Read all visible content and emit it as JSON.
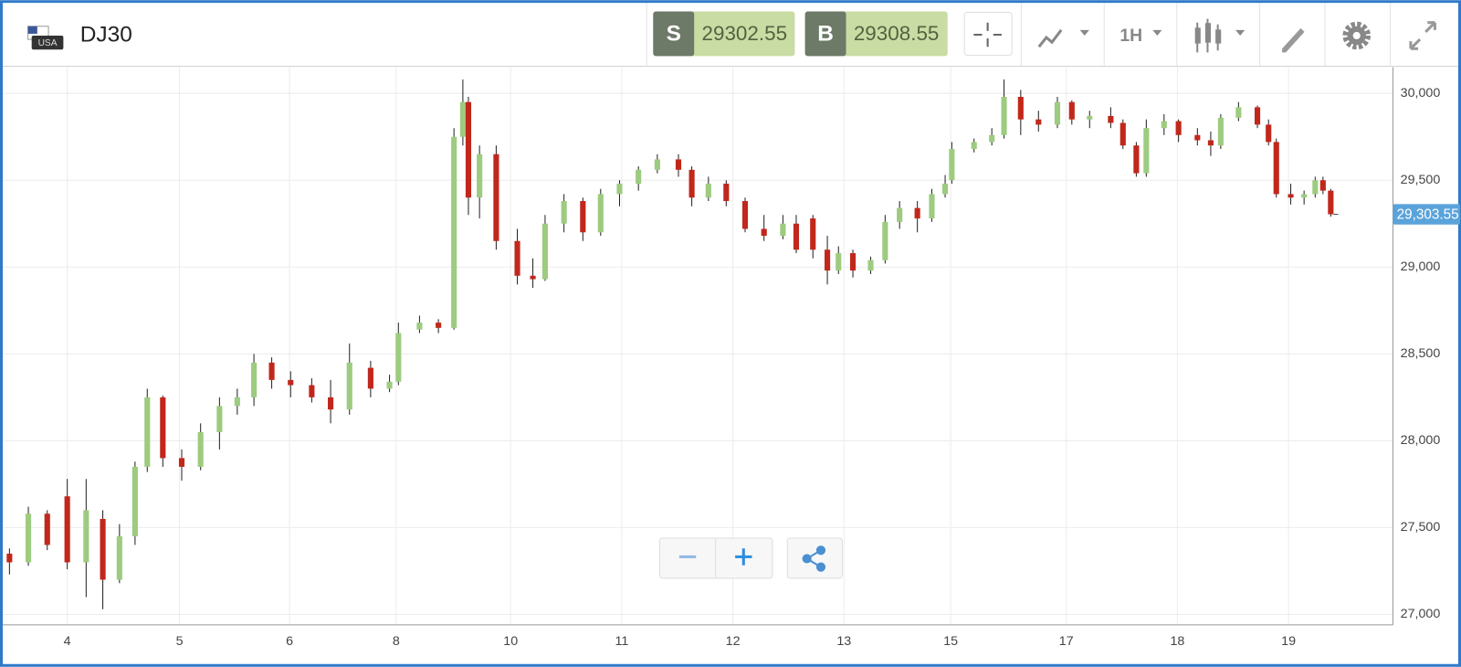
{
  "header": {
    "flag_label": "USA",
    "symbol": "DJ30",
    "sell_label": "S",
    "sell_price": 29302.55,
    "buy_label": "B",
    "buy_price": 29308.55,
    "interval": "1H"
  },
  "chart_data": {
    "type": "candlestick",
    "x": [
      -0.52,
      -0.35,
      -0.18,
      0,
      0.17,
      0.32,
      0.47,
      0.61,
      0.72,
      0.86,
      1.03,
      1.2,
      1.37,
      1.53,
      1.68,
      1.84,
      2.01,
      2.2,
      2.37,
      2.54,
      2.73,
      2.9,
      2.98,
      3.17,
      3.34,
      3.48,
      3.56,
      3.61,
      3.71,
      3.86,
      4.05,
      4.19,
      4.3,
      4.47,
      4.64,
      4.8,
      4.97,
      5.14,
      5.31,
      5.5,
      5.62,
      5.77,
      5.93,
      6.1,
      6.27,
      6.44,
      6.56,
      6.71,
      6.84,
      6.94,
      7.07,
      7.23,
      7.36,
      7.49,
      7.65,
      7.78,
      7.9,
      7.96,
      8.16,
      8.32,
      8.43,
      8.58,
      8.74,
      8.91,
      9.04,
      9.2,
      9.39,
      9.5,
      9.62,
      9.71,
      9.87,
      10,
      10.17,
      10.29,
      10.38,
      10.54,
      10.71,
      10.81,
      10.88,
      11.01,
      11.13,
      11.23,
      11.3,
      11.37
    ],
    "open": [
      27350,
      27300,
      27580,
      27680,
      27300,
      27550,
      27200,
      27450,
      27850,
      28250,
      27900,
      27850,
      28050,
      28200,
      28250,
      28450,
      28350,
      28320,
      28250,
      28180,
      28420,
      28300,
      28340,
      28640,
      28680,
      28650,
      29750,
      29950,
      29400,
      29650,
      29150,
      28950,
      28930,
      29250,
      29380,
      29200,
      29420,
      29480,
      29560,
      29620,
      29560,
      29400,
      29480,
      29380,
      29220,
      29180,
      29250,
      29280,
      29100,
      28980,
      29080,
      28980,
      29040,
      29260,
      29340,
      29280,
      29420,
      29500,
      29680,
      29720,
      29760,
      29980,
      29850,
      29820,
      29950,
      29850,
      29870,
      29830,
      29700,
      29540,
      29800,
      29840,
      29760,
      29730,
      29700,
      29860,
      29920,
      29820,
      29720,
      29420,
      29400,
      29420,
      29500,
      29440
    ],
    "high": [
      27380,
      27620,
      27600,
      27780,
      27780,
      27600,
      27520,
      27880,
      28300,
      28260,
      27950,
      28100,
      28250,
      28300,
      28500,
      28480,
      28400,
      28360,
      28350,
      28560,
      28460,
      28380,
      28680,
      28720,
      28700,
      29800,
      30080,
      29980,
      29700,
      29700,
      29220,
      29050,
      29300,
      29420,
      29400,
      29450,
      29500,
      29580,
      29650,
      29650,
      29580,
      29520,
      29500,
      29400,
      29300,
      29300,
      29300,
      29300,
      29180,
      29120,
      29100,
      29060,
      29300,
      29380,
      29380,
      29450,
      29530,
      29720,
      29740,
      29800,
      30080,
      30020,
      29900,
      29980,
      29960,
      29900,
      29920,
      29850,
      29720,
      29850,
      29880,
      29850,
      29800,
      29780,
      29880,
      29950,
      29930,
      29850,
      29740,
      29480,
      29440,
      29520,
      29520,
      29450
    ],
    "low": [
      27230,
      27280,
      27370,
      27260,
      27100,
      27030,
      27180,
      27400,
      27820,
      27850,
      27770,
      27830,
      27950,
      28150,
      28200,
      28300,
      28250,
      28220,
      28100,
      28150,
      28250,
      28280,
      28320,
      28620,
      28620,
      28640,
      29700,
      29300,
      29280,
      29100,
      28900,
      28880,
      28920,
      29200,
      29150,
      29180,
      29350,
      29440,
      29540,
      29520,
      29350,
      29380,
      29350,
      29200,
      29150,
      29160,
      29080,
      29050,
      28900,
      28960,
      28940,
      28960,
      29020,
      29220,
      29200,
      29260,
      29400,
      29480,
      29660,
      29700,
      29740,
      29760,
      29780,
      29800,
      29820,
      29800,
      29800,
      29680,
      29520,
      29520,
      29760,
      29720,
      29700,
      29640,
      29680,
      29840,
      29800,
      29700,
      29400,
      29360,
      29360,
      29400,
      29420,
      29290
    ],
    "close": [
      27300,
      27580,
      27400,
      27300,
      27600,
      27200,
      27450,
      27850,
      28250,
      27900,
      27850,
      28050,
      28200,
      28250,
      28450,
      28350,
      28320,
      28250,
      28180,
      28450,
      28300,
      28340,
      28620,
      28680,
      28650,
      29750,
      29950,
      29400,
      29650,
      29150,
      28950,
      28930,
      29250,
      29380,
      29200,
      29420,
      29480,
      29560,
      29620,
      29560,
      29400,
      29480,
      29380,
      29220,
      29180,
      29250,
      29100,
      29100,
      28980,
      29080,
      28980,
      29040,
      29260,
      29340,
      29280,
      29420,
      29480,
      29680,
      29720,
      29760,
      29980,
      29850,
      29820,
      29950,
      29850,
      29870,
      29830,
      29700,
      29540,
      29800,
      29840,
      29760,
      29730,
      29700,
      29860,
      29920,
      29820,
      29720,
      29420,
      29400,
      29420,
      29500,
      29440,
      29304
    ],
    "up_color": "#9dcb7f",
    "down_color": "#c1271b",
    "xlim": [
      -0.58,
      11.93
    ],
    "xticks": [
      {
        "value": 0,
        "label": "4"
      },
      {
        "value": 1.01,
        "label": "5"
      },
      {
        "value": 2,
        "label": "6"
      },
      {
        "value": 2.96,
        "label": "8"
      },
      {
        "value": 3.99,
        "label": "10"
      },
      {
        "value": 4.99,
        "label": "11"
      },
      {
        "value": 5.99,
        "label": "12"
      },
      {
        "value": 6.99,
        "label": "13"
      },
      {
        "value": 7.95,
        "label": "15"
      },
      {
        "value": 8.99,
        "label": "17"
      },
      {
        "value": 9.99,
        "label": "18"
      },
      {
        "value": 10.99,
        "label": "19"
      }
    ],
    "ylim": [
      26940,
      30150
    ],
    "yticks": [
      {
        "value": 27000,
        "label": "27,000"
      },
      {
        "value": 27500,
        "label": "27,500"
      },
      {
        "value": 28000,
        "label": "28,000"
      },
      {
        "value": 28500,
        "label": "28,500"
      },
      {
        "value": 29000,
        "label": "29,000"
      },
      {
        "value": 29500,
        "label": "29,500"
      },
      {
        "value": 30000,
        "label": "30,000"
      }
    ],
    "last_price": {
      "value": 29303.55,
      "label": "29,303.55"
    },
    "grid": true
  }
}
